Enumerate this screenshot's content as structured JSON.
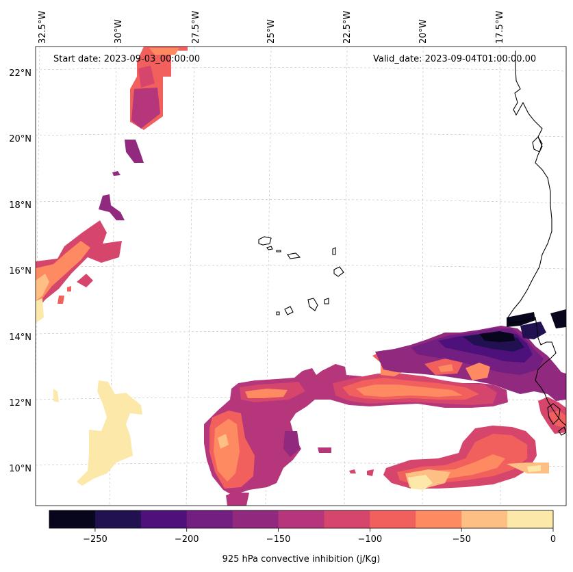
{
  "map": {
    "start_date": "Start date: 2023-09-03_00:00:00",
    "valid_date": "Valid_date: 2023-09-04T01:00:00.00",
    "lon_labels": [
      "32.5°W",
      "30°W",
      "27.5°W",
      "25°W",
      "22.5°W",
      "20°W",
      "17.5°W"
    ],
    "lat_labels": [
      "22°N",
      "20°N",
      "18°N",
      "16°N",
      "14°N",
      "12°N",
      "10°N"
    ],
    "colorbar": {
      "label": "925 hPa convective inhibition (j/Kg)",
      "tick_labels": [
        "−250",
        "−200",
        "−150",
        "−100",
        "−50",
        "0"
      ],
      "levels": [
        -275,
        -250,
        -225,
        -200,
        -175,
        -150,
        -125,
        -100,
        -75,
        -50,
        -25,
        0
      ],
      "colors": [
        "#07061c",
        "#221150",
        "#4e117b",
        "#721f81",
        "#91297e",
        "#b5367a",
        "#d6456c",
        "#f1605d",
        "#fe8a62",
        "#febf84",
        "#fce9aa"
      ]
    }
  }
}
